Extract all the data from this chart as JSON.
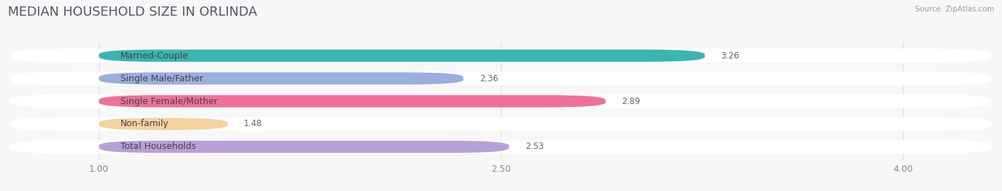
{
  "title": "MEDIAN HOUSEHOLD SIZE IN ORLINDA",
  "source": "Source: ZipAtlas.com",
  "categories": [
    "Married-Couple",
    "Single Male/Father",
    "Single Female/Mother",
    "Non-family",
    "Total Households"
  ],
  "values": [
    3.26,
    2.36,
    2.89,
    1.48,
    2.53
  ],
  "bar_colors": [
    "#3ab5b0",
    "#9baee0",
    "#f07099",
    "#f5d2a0",
    "#b8a0d8"
  ],
  "background_color": "#f7f7f7",
  "bar_bg_color": "#ffffff",
  "xdata_min": 1.0,
  "xdata_max": 4.0,
  "xticks": [
    1.0,
    2.5,
    4.0
  ],
  "title_fontsize": 13,
  "label_fontsize": 9,
  "value_fontsize": 8.5,
  "title_color": "#555566",
  "source_color": "#999999",
  "label_color": "#444444",
  "value_color": "#666666",
  "grid_color": "#dddddd"
}
